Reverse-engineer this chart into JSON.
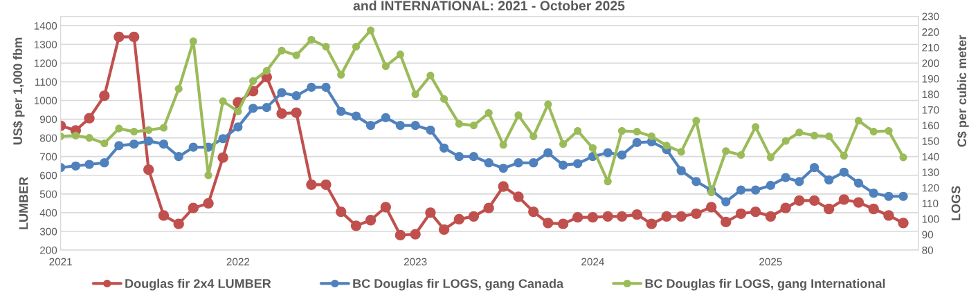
{
  "chart_data": {
    "type": "line",
    "title": "and INTERNATIONAL: 2021 - October 2025",
    "ylabel": "US$ per 1,000 fbm",
    "y2label": "C$ per cubic meter",
    "annotations": [
      "LUMBER",
      "LOGS"
    ],
    "x": [
      "2021-01",
      "2021-02",
      "2021-03",
      "2021-04",
      "2021-05",
      "2021-06",
      "2021-07",
      "2021-08",
      "2021-09",
      "2021-10",
      "2021-11",
      "2021-12",
      "2022-01",
      "2022-02",
      "2022-03",
      "2022-04",
      "2022-05",
      "2022-06",
      "2022-07",
      "2022-08",
      "2022-09",
      "2022-10",
      "2022-11",
      "2022-12",
      "2023-01",
      "2023-02",
      "2023-03",
      "2023-04",
      "2023-05",
      "2023-06",
      "2023-07",
      "2023-08",
      "2023-09",
      "2023-10",
      "2023-11",
      "2023-12",
      "2024-01",
      "2024-02",
      "2024-03",
      "2024-04",
      "2024-05",
      "2024-06",
      "2024-07",
      "2024-08",
      "2024-09",
      "2024-10",
      "2024-11",
      "2024-12",
      "2025-01",
      "2025-02",
      "2025-03",
      "2025-04",
      "2025-05",
      "2025-06",
      "2025-07",
      "2025-08",
      "2025-09",
      "2025-10"
    ],
    "series": [
      {
        "name": "Douglas fir 2x4 LUMBER",
        "color": "#c0504d",
        "values": [
          865,
          840,
          905,
          1025,
          1340,
          1340,
          630,
          385,
          340,
          425,
          450,
          695,
          990,
          1050,
          1125,
          930,
          935,
          550,
          550,
          405,
          330,
          360,
          430,
          280,
          285,
          400,
          310,
          365,
          380,
          425,
          540,
          485,
          405,
          345,
          340,
          375,
          375,
          380,
          380,
          390,
          340,
          380,
          380,
          395,
          430,
          350,
          395,
          405,
          380,
          425,
          465,
          465,
          420,
          470,
          455,
          420,
          385,
          345
        ]
      },
      {
        "name": "BC Douglas fir LOGS, gang Canada",
        "color": "#4f81bd",
        "axis": "y2",
        "values": [
          133,
          134,
          135,
          136,
          147,
          148,
          150,
          148,
          140,
          146,
          146,
          151.5,
          159,
          171,
          171.5,
          181,
          179,
          184.5,
          184.5,
          169,
          166,
          160,
          165,
          160,
          160,
          157,
          145.5,
          140,
          140,
          136,
          132.5,
          136,
          136,
          142.5,
          134.5,
          135.5,
          140,
          142.5,
          141,
          149,
          149.5,
          144.5,
          131,
          124,
          118.5,
          111,
          118.5,
          118.5,
          121.5,
          126.5,
          124,
          133,
          125,
          130,
          123,
          116.5,
          114.5,
          114.5
        ]
      },
      {
        "name": "BC Douglas fir LOGS, gang International",
        "color": "#9bbb59",
        "axis": "y2",
        "values": [
          153,
          153.5,
          152,
          148.5,
          158,
          156,
          157,
          158.5,
          183.5,
          214,
          128,
          175.5,
          169,
          188.5,
          195,
          208,
          205,
          215,
          210.5,
          192.5,
          210.5,
          221,
          198,
          205.5,
          180,
          192,
          177,
          161,
          160,
          168,
          147.5,
          166.5,
          153,
          173.5,
          148,
          156.5,
          145.5,
          124,
          156.5,
          156,
          153,
          147,
          143,
          163,
          117,
          143.5,
          141,
          159,
          139.5,
          150,
          155.5,
          153.5,
          153,
          140.5,
          163,
          156,
          156.5,
          139.5
        ]
      }
    ],
    "xlim": [
      "2021-01",
      "2025-11"
    ],
    "xticks": [
      "2021",
      "2022",
      "2023",
      "2024",
      "2025"
    ],
    "ylim": [
      200,
      1450
    ],
    "yticks": [
      200,
      300,
      400,
      500,
      600,
      700,
      800,
      900,
      1000,
      1100,
      1200,
      1300,
      1400
    ],
    "y2lim": [
      80,
      230
    ],
    "y2ticks": [
      80,
      90,
      100,
      110,
      120,
      130,
      140,
      150,
      160,
      170,
      180,
      190,
      200,
      210,
      220,
      230
    ],
    "grid": "y",
    "legend": "bottom",
    "marker": "circle",
    "line_style": "solid"
  }
}
